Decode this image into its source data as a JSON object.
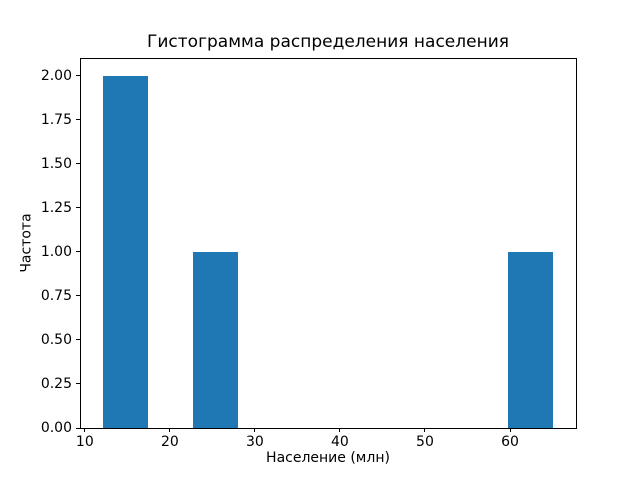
{
  "figure": {
    "background": "#ffffff"
  },
  "chart_data": {
    "type": "bar",
    "subtype": "histogram",
    "title": "Гистограмма распределения населения",
    "xlabel": "Население (млн)",
    "ylabel": "Частота",
    "xlim": [
      9.43,
      67.76
    ],
    "ylim": [
      0,
      2.1
    ],
    "grid": false,
    "legend": false,
    "bar_color": "#1f77b4",
    "x_ticks": [
      {
        "value": 10,
        "label": "10"
      },
      {
        "value": 20,
        "label": "20"
      },
      {
        "value": 30,
        "label": "30"
      },
      {
        "value": 40,
        "label": "40"
      },
      {
        "value": 50,
        "label": "50"
      },
      {
        "value": 60,
        "label": "60"
      }
    ],
    "y_ticks": [
      {
        "value": 0.0,
        "label": "0.00"
      },
      {
        "value": 0.25,
        "label": "0.25"
      },
      {
        "value": 0.5,
        "label": "0.50"
      },
      {
        "value": 0.75,
        "label": "0.75"
      },
      {
        "value": 1.0,
        "label": "1.00"
      },
      {
        "value": 1.25,
        "label": "1.25"
      },
      {
        "value": 1.5,
        "label": "1.50"
      },
      {
        "value": 1.75,
        "label": "1.75"
      },
      {
        "value": 2.0,
        "label": "2.00"
      }
    ],
    "bars": [
      {
        "x_start": 12.1,
        "x_end": 17.4,
        "count": 2
      },
      {
        "x_start": 22.7,
        "x_end": 28.0,
        "count": 1
      },
      {
        "x_start": 59.8,
        "x_end": 65.1,
        "count": 1
      }
    ]
  }
}
